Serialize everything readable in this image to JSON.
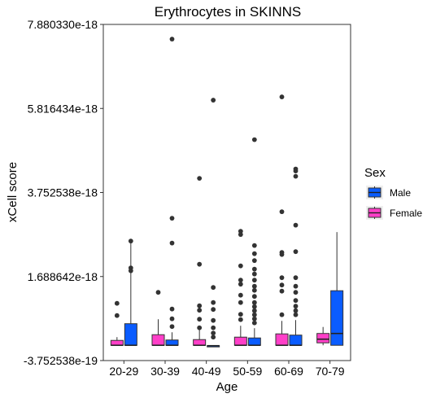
{
  "chart_data": {
    "type": "boxplot",
    "title": "Erythrocytes in SKINNS",
    "xlabel": "Age",
    "ylabel": "xCell score",
    "categories": [
      "20-29",
      "30-39",
      "40-49",
      "50-59",
      "60-69",
      "70-79"
    ],
    "y_ticks": [
      -3.752538e-19,
      1.688642e-18,
      3.752538e-18,
      5.816434e-18,
      7.88033e-18
    ],
    "y_tick_labels": [
      "-3.752538e-19",
      "1.688642e-18",
      "3.752538e-18",
      "5.816434e-18",
      "7.880330e-18"
    ],
    "ylim": [
      -3.752538e-19,
      7.88033e-18
    ],
    "legend": {
      "title": "Sex",
      "placement": "right",
      "entries": [
        {
          "name": "Male",
          "color": "#0a5cff"
        },
        {
          "name": "Female",
          "color": "#ff3fc8"
        }
      ]
    },
    "series": [
      {
        "name": "Female",
        "color": "#ff3fc8",
        "boxes": [
          {
            "category": "20-29",
            "min": 0.0,
            "q1": 0.0,
            "median": 0.0,
            "q3": 1.2e-19,
            "max": 2e-19,
            "outliers": [
              1.03e-18,
              7.3e-19
            ]
          },
          {
            "category": "30-39",
            "min": 0.0,
            "q1": 0.0,
            "median": 0.0,
            "q3": 2.6e-19,
            "max": 6.4e-19,
            "outliers": [
              1.3e-18
            ]
          },
          {
            "category": "40-49",
            "min": 0.0,
            "q1": 0.0,
            "median": 0.0,
            "q3": 1.4e-19,
            "max": 3.8e-19,
            "outliers": [
              4.1e-18,
              1.99e-18,
              9.7e-19,
              8.6e-19,
              6.4e-19,
              4.3e-19
            ]
          },
          {
            "category": "50-59",
            "min": 0.0,
            "q1": 0.0,
            "median": 0.0,
            "q3": 2e-19,
            "max": 4.8e-19,
            "outliers": [
              2.8e-18,
              2.72e-18,
              1.95e-18,
              1.6e-18,
              1.5e-18,
              1.23e-18,
              1.05e-18,
              7.6e-19,
              6.3e-19
            ]
          },
          {
            "category": "60-69",
            "min": 0.0,
            "q1": 0.0,
            "median": 0.0,
            "q3": 2.8e-19,
            "max": 6e-19,
            "outliers": [
              6.1e-18,
              3.28e-18,
              2.28e-18,
              2.23e-18,
              1.66e-18,
              1.48e-18,
              1.33e-18,
              7.5e-19
            ]
          },
          {
            "category": "70-79",
            "min": 0.0,
            "q1": 6e-20,
            "median": 1.5e-19,
            "q3": 2.9e-19,
            "max": 4.5e-19,
            "outliers": []
          }
        ]
      },
      {
        "name": "Male",
        "color": "#0a5cff",
        "boxes": [
          {
            "category": "20-29",
            "min": 0.0,
            "q1": 0.0,
            "median": 0.0,
            "q3": 5.3e-19,
            "max": 2.51e-18,
            "outliers": [
              2.56e-18,
              1.9e-18,
              1.83e-18
            ]
          },
          {
            "category": "30-39",
            "min": 0.0,
            "q1": 0.0,
            "median": 0.0,
            "q3": 1.3e-19,
            "max": 3.2e-19,
            "outliers": [
              7.52e-18,
              3.12e-18,
              2.51e-18,
              8.9e-19,
              6.5e-19,
              4.6e-19
            ]
          },
          {
            "category": "40-49",
            "min": -1e-20,
            "q1": -1e-20,
            "median": -1e-20,
            "q3": -1e-20,
            "max": -1e-20,
            "outliers": [
              6.02e-18,
              1.42e-18,
              1.05e-18,
              8.8e-19,
              6.1e-19,
              4.3e-19,
              3e-19,
              2e-19
            ]
          },
          {
            "category": "50-59",
            "min": 0.0,
            "q1": 0.0,
            "median": 0.0,
            "q3": 1.8e-19,
            "max": 4.2e-19,
            "outliers": [
              5.05e-18,
              2.45e-18,
              2.25e-18,
              2.08e-18,
              1.87e-18,
              1.75e-18,
              1.6e-18,
              1.45e-18,
              1.35e-18,
              1.2e-18,
              1.05e-18,
              9.5e-19,
              8.5e-19,
              7.5e-19,
              6.5e-19,
              5.5e-19
            ]
          },
          {
            "category": "60-69",
            "min": 0.0,
            "q1": 0.0,
            "median": 0.0,
            "q3": 2.5e-19,
            "max": 6.2e-19,
            "outliers": [
              4.33e-18,
              4.28e-18,
              4.15e-18,
              2.95e-18,
              2.3e-18,
              1.66e-18,
              1.45e-18,
              1.3e-18,
              1.1e-18,
              9.6e-19,
              8.5e-19,
              7.5e-19
            ]
          },
          {
            "category": "70-79",
            "min": 0.0,
            "q1": 0.0,
            "median": 2.9e-19,
            "q3": 1.34e-18,
            "max": 2.78e-18,
            "outliers": []
          }
        ]
      }
    ]
  }
}
